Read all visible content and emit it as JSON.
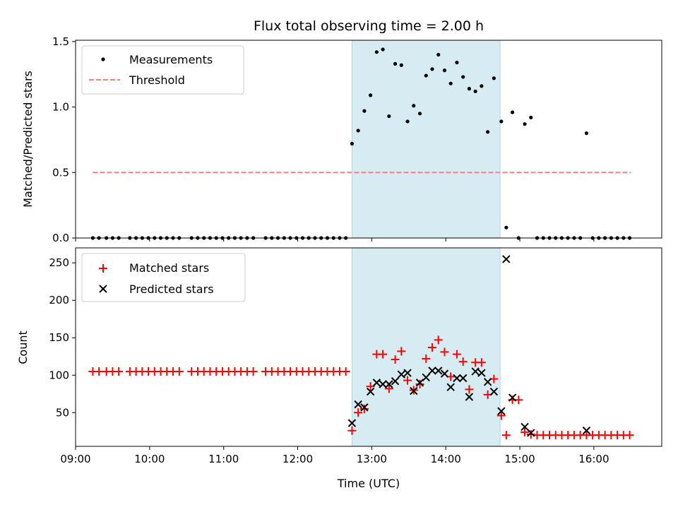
{
  "title": "Flux total observing time = 2.00 h",
  "colors": {
    "measurement": "#000000",
    "threshold": "#ff7f7f",
    "matched": "#ff0000",
    "predicted": "#000000",
    "span": "#add8e6"
  },
  "chart_data": [
    {
      "type": "scatter",
      "ylabel": "Matched/Predicted stars",
      "xlim": [
        "09:00",
        "16:55"
      ],
      "ylim": [
        0,
        1.51
      ],
      "yticks": [
        0.0,
        0.5,
        1.0,
        1.5
      ],
      "yticklabels": [
        "0.0",
        "0.5",
        "1.0",
        "1.5"
      ],
      "legend_position": "top-left",
      "highlight_span": [
        "12:44",
        "14:44"
      ],
      "threshold": {
        "name": "Threshold",
        "value": 0.5,
        "x": [
          "09:14",
          "16:30"
        ]
      },
      "series": [
        {
          "name": "Measurements",
          "points": [
            [
              "09:14",
              0
            ],
            [
              "09:19",
              0
            ],
            [
              "09:25",
              0
            ],
            [
              "09:30",
              0
            ],
            [
              "09:35",
              0
            ],
            [
              "09:44",
              0
            ],
            [
              "09:49",
              0
            ],
            [
              "09:54",
              0
            ],
            [
              "09:59",
              0
            ],
            [
              "10:04",
              0
            ],
            [
              "10:09",
              0
            ],
            [
              "10:14",
              0
            ],
            [
              "10:19",
              0
            ],
            [
              "10:24",
              0
            ],
            [
              "10:34",
              0
            ],
            [
              "10:39",
              0
            ],
            [
              "10:44",
              0
            ],
            [
              "10:49",
              0
            ],
            [
              "10:54",
              0
            ],
            [
              "10:59",
              0
            ],
            [
              "11:04",
              0
            ],
            [
              "11:09",
              0
            ],
            [
              "11:14",
              0
            ],
            [
              "11:19",
              0
            ],
            [
              "11:24",
              0
            ],
            [
              "11:34",
              0
            ],
            [
              "11:39",
              0
            ],
            [
              "11:44",
              0
            ],
            [
              "11:49",
              0
            ],
            [
              "11:54",
              0
            ],
            [
              "11:59",
              0
            ],
            [
              "12:04",
              0
            ],
            [
              "12:09",
              0
            ],
            [
              "12:14",
              0
            ],
            [
              "12:19",
              0
            ],
            [
              "12:24",
              0
            ],
            [
              "12:29",
              0
            ],
            [
              "12:34",
              0
            ],
            [
              "12:39",
              0
            ],
            [
              "12:44",
              0.72
            ],
            [
              "12:49",
              0.82
            ],
            [
              "12:54",
              0.97
            ],
            [
              "12:59",
              1.09
            ],
            [
              "13:04",
              1.42
            ],
            [
              "13:09",
              1.44
            ],
            [
              "13:14",
              0.93
            ],
            [
              "13:19",
              1.33
            ],
            [
              "13:24",
              1.32
            ],
            [
              "13:29",
              0.89
            ],
            [
              "13:34",
              1.01
            ],
            [
              "13:39",
              0.95
            ],
            [
              "13:44",
              1.24
            ],
            [
              "13:49",
              1.29
            ],
            [
              "13:54",
              1.4
            ],
            [
              "13:59",
              1.28
            ],
            [
              "14:04",
              1.18
            ],
            [
              "14:09",
              1.34
            ],
            [
              "14:14",
              1.23
            ],
            [
              "14:19",
              1.14
            ],
            [
              "14:24",
              1.12
            ],
            [
              "14:29",
              1.16
            ],
            [
              "14:34",
              0.81
            ],
            [
              "14:39",
              1.22
            ],
            [
              "14:45",
              0.89
            ],
            [
              "14:49",
              0.08
            ],
            [
              "14:54",
              0.96
            ],
            [
              "14:59",
              0.0
            ],
            [
              "15:04",
              0.87
            ],
            [
              "15:09",
              0.92
            ],
            [
              "15:14",
              0
            ],
            [
              "15:19",
              0
            ],
            [
              "15:24",
              0
            ],
            [
              "15:29",
              0
            ],
            [
              "15:34",
              0
            ],
            [
              "15:39",
              0
            ],
            [
              "15:44",
              0
            ],
            [
              "15:49",
              0
            ],
            [
              "15:54",
              0.8
            ],
            [
              "15:59",
              0
            ],
            [
              "16:04",
              0
            ],
            [
              "16:09",
              0
            ],
            [
              "16:14",
              0
            ],
            [
              "16:19",
              0
            ],
            [
              "16:24",
              0
            ],
            [
              "16:29",
              0
            ]
          ]
        }
      ]
    },
    {
      "type": "scatter",
      "xlabel": "Time (UTC)",
      "ylabel": "Count",
      "xlim": [
        "09:00",
        "16:55"
      ],
      "ylim": [
        5,
        270
      ],
      "xticks": [
        "09:00",
        "10:00",
        "11:00",
        "12:00",
        "13:00",
        "14:00",
        "15:00",
        "16:00"
      ],
      "yticks": [
        50,
        100,
        150,
        200,
        250
      ],
      "yticklabels": [
        "50",
        "100",
        "150",
        "200",
        "250"
      ],
      "legend_position": "top-left",
      "highlight_span": [
        "12:44",
        "14:44"
      ],
      "series": [
        {
          "name": "Matched stars",
          "marker": "plus",
          "points": [
            [
              "09:14",
              105
            ],
            [
              "09:19",
              105
            ],
            [
              "09:25",
              105
            ],
            [
              "09:30",
              105
            ],
            [
              "09:35",
              105
            ],
            [
              "09:44",
              105
            ],
            [
              "09:49",
              105
            ],
            [
              "09:54",
              105
            ],
            [
              "09:59",
              105
            ],
            [
              "10:04",
              105
            ],
            [
              "10:09",
              105
            ],
            [
              "10:14",
              105
            ],
            [
              "10:19",
              105
            ],
            [
              "10:24",
              105
            ],
            [
              "10:34",
              105
            ],
            [
              "10:39",
              105
            ],
            [
              "10:44",
              105
            ],
            [
              "10:49",
              105
            ],
            [
              "10:54",
              105
            ],
            [
              "10:59",
              105
            ],
            [
              "11:04",
              105
            ],
            [
              "11:09",
              105
            ],
            [
              "11:14",
              105
            ],
            [
              "11:19",
              105
            ],
            [
              "11:24",
              105
            ],
            [
              "11:34",
              105
            ],
            [
              "11:39",
              105
            ],
            [
              "11:44",
              105
            ],
            [
              "11:49",
              105
            ],
            [
              "11:54",
              105
            ],
            [
              "11:59",
              105
            ],
            [
              "12:04",
              105
            ],
            [
              "12:09",
              105
            ],
            [
              "12:14",
              105
            ],
            [
              "12:19",
              105
            ],
            [
              "12:24",
              105
            ],
            [
              "12:29",
              105
            ],
            [
              "12:34",
              105
            ],
            [
              "12:39",
              105
            ],
            [
              "12:44",
              26
            ],
            [
              "12:49",
              50
            ],
            [
              "12:54",
              55
            ],
            [
              "12:59",
              85
            ],
            [
              "13:04",
              128
            ],
            [
              "13:09",
              128
            ],
            [
              "13:14",
              82
            ],
            [
              "13:19",
              121
            ],
            [
              "13:24",
              132
            ],
            [
              "13:29",
              93
            ],
            [
              "13:34",
              80
            ],
            [
              "13:39",
              88
            ],
            [
              "13:44",
              122
            ],
            [
              "13:49",
              137
            ],
            [
              "13:54",
              147
            ],
            [
              "13:59",
              131
            ],
            [
              "14:04",
              98
            ],
            [
              "14:09",
              128
            ],
            [
              "14:14",
              118
            ],
            [
              "14:19",
              81
            ],
            [
              "14:24",
              117
            ],
            [
              "14:29",
              117
            ],
            [
              "14:34",
              74
            ],
            [
              "14:39",
              95
            ],
            [
              "14:45",
              46
            ],
            [
              "14:49",
              20
            ],
            [
              "14:54",
              67
            ],
            [
              "14:59",
              67
            ],
            [
              "15:04",
              24
            ],
            [
              "15:09",
              21
            ],
            [
              "15:14",
              20
            ],
            [
              "15:19",
              20
            ],
            [
              "15:24",
              20
            ],
            [
              "15:29",
              20
            ],
            [
              "15:34",
              20
            ],
            [
              "15:39",
              20
            ],
            [
              "15:44",
              20
            ],
            [
              "15:49",
              20
            ],
            [
              "15:54",
              20
            ],
            [
              "15:59",
              20
            ],
            [
              "16:04",
              20
            ],
            [
              "16:09",
              20
            ],
            [
              "16:14",
              20
            ],
            [
              "16:19",
              20
            ],
            [
              "16:24",
              20
            ],
            [
              "16:29",
              20
            ]
          ]
        },
        {
          "name": "Predicted stars",
          "marker": "x",
          "points": [
            [
              "12:44",
              36
            ],
            [
              "12:49",
              61
            ],
            [
              "12:54",
              57
            ],
            [
              "12:59",
              78
            ],
            [
              "13:04",
              90
            ],
            [
              "13:09",
              88
            ],
            [
              "13:14",
              88
            ],
            [
              "13:19",
              92
            ],
            [
              "13:24",
              101
            ],
            [
              "13:29",
              103
            ],
            [
              "13:34",
              79
            ],
            [
              "13:39",
              90
            ],
            [
              "13:44",
              97
            ],
            [
              "13:49",
              106
            ],
            [
              "13:54",
              106
            ],
            [
              "13:59",
              102
            ],
            [
              "14:04",
              84
            ],
            [
              "14:09",
              96
            ],
            [
              "14:14",
              96
            ],
            [
              "14:19",
              71
            ],
            [
              "14:24",
              105
            ],
            [
              "14:29",
              103
            ],
            [
              "14:34",
              91
            ],
            [
              "14:39",
              78
            ],
            [
              "14:45",
              52
            ],
            [
              "14:49",
              255
            ],
            [
              "14:54",
              70
            ],
            [
              "15:04",
              31
            ],
            [
              "15:09",
              23
            ],
            [
              "15:54",
              26
            ]
          ]
        }
      ]
    }
  ]
}
